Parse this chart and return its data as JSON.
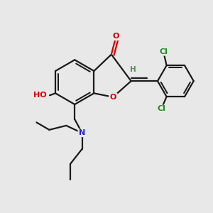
{
  "background_color": "#e8e8e8",
  "bond_color": "#1a1a1a",
  "bond_width": 1.6,
  "atom_colors": {
    "O": "#cc0000",
    "N": "#2222cc",
    "Cl": "#228b22",
    "H": "#5a8a5a",
    "C": "#1a1a1a"
  },
  "figsize": [
    3.0,
    3.0
  ],
  "dpi": 100
}
